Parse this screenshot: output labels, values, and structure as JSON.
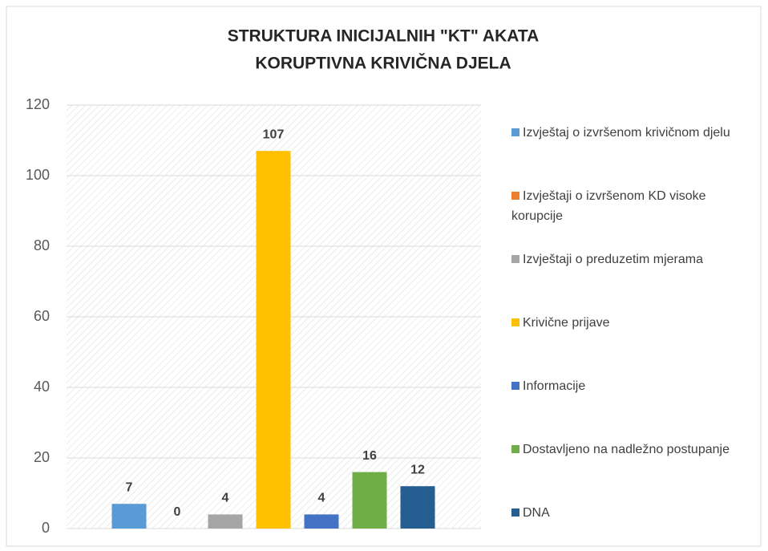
{
  "chart_data": {
    "type": "bar",
    "title": "STRUKTURA INICIJALNIH \"KT\" AKATA",
    "subtitle": "KORUPTIVNA KRIVIČNA DJELA",
    "categories": [
      null
    ],
    "series": [
      {
        "name": "Izvještaj o izvršenom krivičnom djelu",
        "color": "#5b9bd5",
        "values": [
          7
        ]
      },
      {
        "name": "Izvještaji o izvršenom KD visoke korupcije",
        "color": "#ed7d31",
        "values": [
          0
        ]
      },
      {
        "name": "Izvještaji o preduzetim mjerama",
        "color": "#a5a5a5",
        "values": [
          4
        ]
      },
      {
        "name": "Krivične prijave",
        "color": "#ffc000",
        "values": [
          107
        ]
      },
      {
        "name": "Informacije",
        "color": "#4472c4",
        "values": [
          4
        ]
      },
      {
        "name": "Dostavljeno na nadležno postupanje",
        "color": "#70ad47",
        "values": [
          16
        ]
      },
      {
        "name": "DNA",
        "color": "#255e91",
        "values": [
          12
        ]
      }
    ],
    "ylim": [
      0,
      120
    ],
    "yticks": [
      0,
      20,
      40,
      60,
      80,
      100,
      120
    ],
    "grid": true,
    "legend": "right"
  }
}
